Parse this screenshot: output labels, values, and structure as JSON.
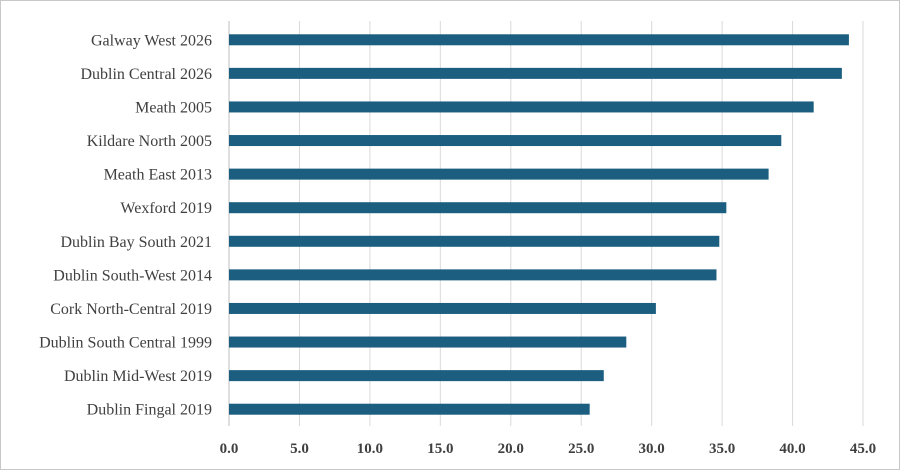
{
  "chart_data": {
    "type": "bar",
    "orientation": "horizontal",
    "categories": [
      "Galway West 2026",
      "Dublin Central 2026",
      "Meath 2005",
      "Kildare North 2005",
      "Meath East 2013",
      "Wexford 2019",
      "Dublin Bay South 2021",
      "Dublin South-West 2014",
      "Cork North-Central 2019",
      "Dublin South Central 1999",
      "Dublin Mid-West 2019",
      "Dublin Fingal 2019"
    ],
    "values": [
      44.0,
      43.5,
      41.5,
      39.2,
      38.3,
      35.3,
      34.8,
      34.6,
      30.3,
      28.2,
      26.6,
      25.6
    ],
    "xlim": [
      0,
      45
    ],
    "xticks": [
      "0.0",
      "5.0",
      "10.0",
      "15.0",
      "20.0",
      "25.0",
      "30.0",
      "35.0",
      "40.0",
      "45.0"
    ],
    "grid": true,
    "legend": "none",
    "bar_color": "#1b5e80"
  }
}
